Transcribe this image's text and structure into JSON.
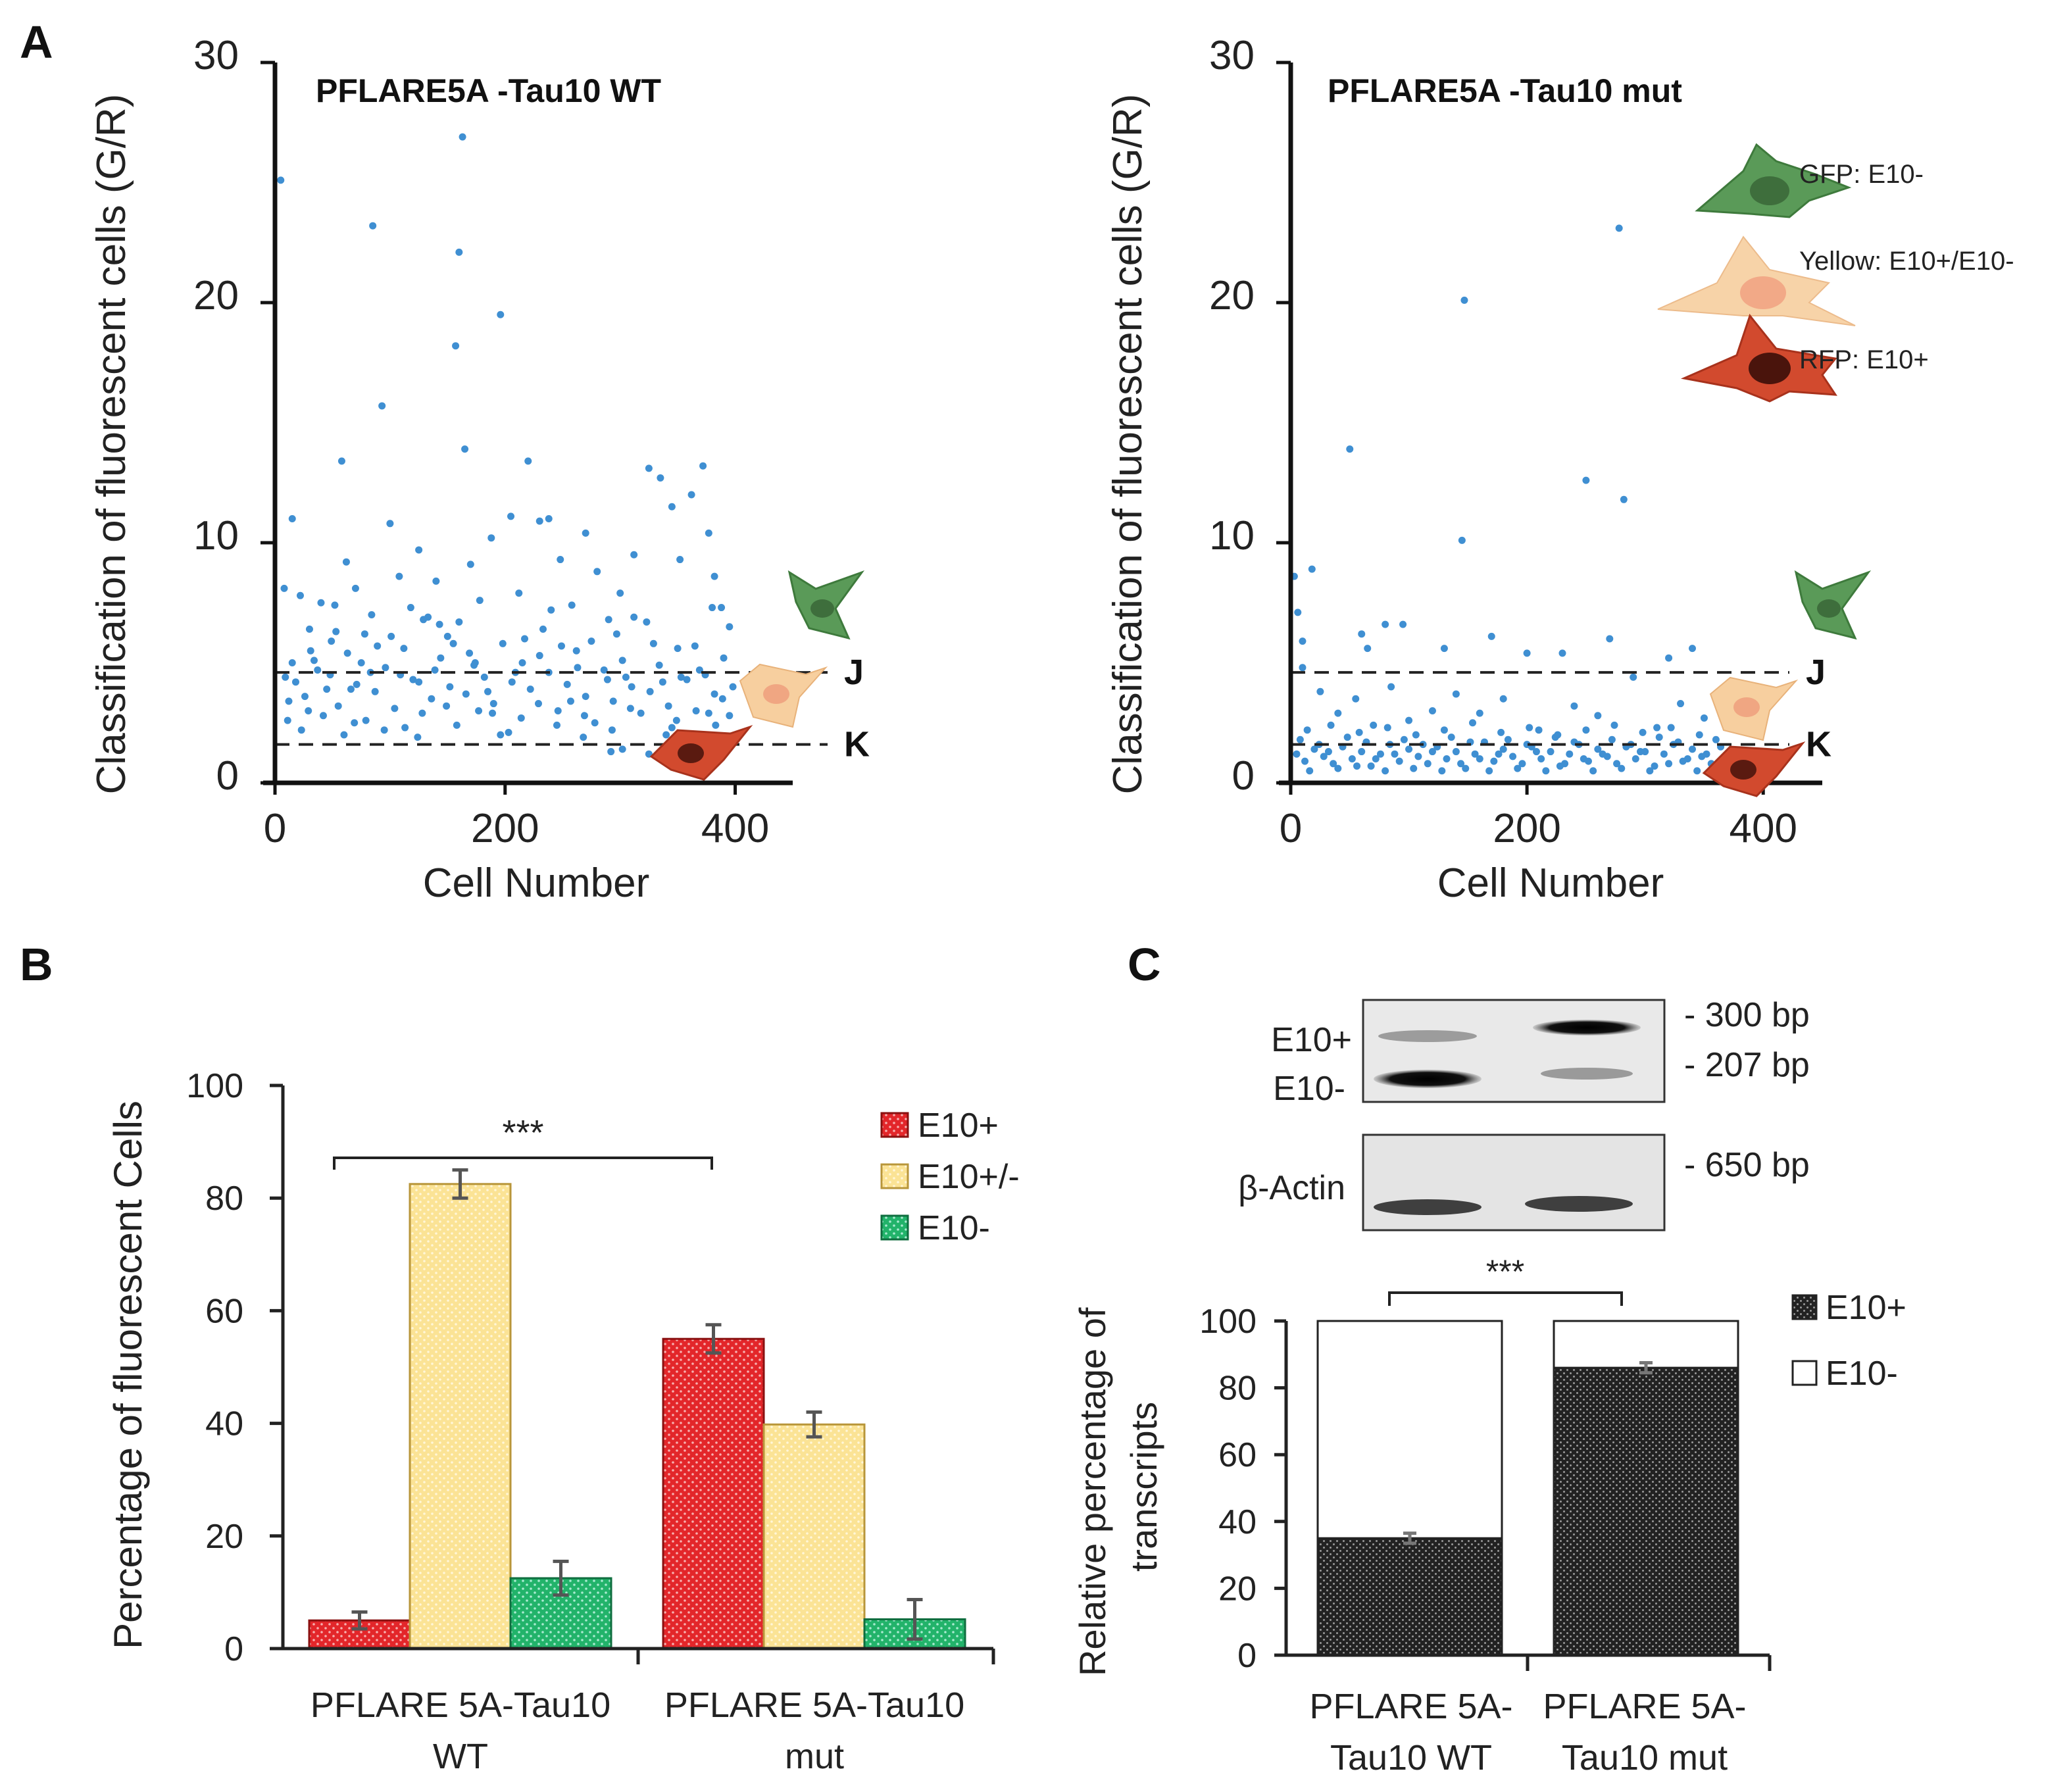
{
  "panel_letters": {
    "a": "A",
    "b": "B",
    "c": "C"
  },
  "colors": {
    "scatter_point": "#3f8fd2",
    "e10_plus_red": "#e3262a",
    "e10_pm_yellow": "#fbe395",
    "e10_minus_green": "#22b36a",
    "stacked_dark": "#222222",
    "gfp_cell": "#5a9a58",
    "yellow_cell": "#f7cf9f",
    "rfp_cell": "#d24a2e"
  },
  "cell_legend": {
    "gfp": "GFP: E10-",
    "yellow": "Yellow: E10+/E10-",
    "rfp": "RFP: E10+"
  },
  "gel": {
    "e10_plus_label": "E10+",
    "e10_minus_label": "E10-",
    "actin_label": "β-Actin",
    "bp_300": "- 300 bp",
    "bp_207": "- 207 bp",
    "bp_650": "- 650 bp"
  },
  "chart_data": [
    {
      "id": "scatter_wt",
      "type": "scatter",
      "title": "PFLARE5A -Tau10 WT",
      "xlabel": "Cell Number",
      "ylabel": "Classification of fluorescent cells (G/R)",
      "xlim": [
        0,
        450
      ],
      "ylim": [
        0,
        30
      ],
      "xticks": [
        "0",
        "200",
        "400"
      ],
      "yticks": [
        "0",
        "10",
        "20",
        "30"
      ],
      "threshold_lines": [
        {
          "label": "J",
          "y": 4.6
        },
        {
          "label": "K",
          "y": 1.6
        }
      ],
      "points": [
        [
          5,
          25.1
        ],
        [
          8,
          8.1
        ],
        [
          15,
          11.0
        ],
        [
          22,
          7.8
        ],
        [
          30,
          6.4
        ],
        [
          40,
          7.5
        ],
        [
          52,
          7.4
        ],
        [
          58,
          13.4
        ],
        [
          62,
          9.2
        ],
        [
          70,
          8.1
        ],
        [
          78,
          6.2
        ],
        [
          85,
          23.2
        ],
        [
          93,
          15.7
        ],
        [
          100,
          10.8
        ],
        [
          108,
          8.6
        ],
        [
          118,
          7.3
        ],
        [
          125,
          9.7
        ],
        [
          133,
          6.9
        ],
        [
          140,
          8.4
        ],
        [
          150,
          6.1
        ],
        [
          157,
          18.2
        ],
        [
          160,
          22.1
        ],
        [
          163,
          26.9
        ],
        [
          165,
          13.9
        ],
        [
          170,
          9.1
        ],
        [
          178,
          7.6
        ],
        [
          188,
          10.2
        ],
        [
          196,
          19.5
        ],
        [
          205,
          11.1
        ],
        [
          212,
          7.9
        ],
        [
          220,
          13.4
        ],
        [
          230,
          10.9
        ],
        [
          238,
          11.0
        ],
        [
          248,
          9.3
        ],
        [
          258,
          7.4
        ],
        [
          270,
          10.4
        ],
        [
          280,
          8.8
        ],
        [
          290,
          6.8
        ],
        [
          300,
          7.9
        ],
        [
          312,
          9.5
        ],
        [
          325,
          13.1
        ],
        [
          335,
          12.7
        ],
        [
          345,
          11.5
        ],
        [
          352,
          9.3
        ],
        [
          362,
          12.0
        ],
        [
          372,
          13.2
        ],
        [
          377,
          10.4
        ],
        [
          382,
          8.6
        ],
        [
          388,
          7.3
        ],
        [
          395,
          6.5
        ],
        [
          292,
          1.3
        ],
        [
          302,
          1.4
        ],
        [
          355,
          1.5
        ],
        [
          360,
          1.6
        ],
        [
          325,
          1.2
        ],
        [
          12,
          3.4
        ],
        [
          18,
          4.2
        ],
        [
          26,
          3.6
        ],
        [
          34,
          5.1
        ],
        [
          42,
          2.8
        ],
        [
          48,
          4.5
        ],
        [
          55,
          3.2
        ],
        [
          63,
          5.4
        ],
        [
          71,
          4.1
        ],
        [
          79,
          2.6
        ],
        [
          87,
          3.8
        ],
        [
          96,
          4.8
        ],
        [
          104,
          3.1
        ],
        [
          112,
          5.6
        ],
        [
          120,
          4.3
        ],
        [
          128,
          2.9
        ],
        [
          136,
          3.5
        ],
        [
          144,
          5.2
        ],
        [
          152,
          4.0
        ],
        [
          158,
          2.4
        ],
        [
          166,
          3.7
        ],
        [
          174,
          5.0
        ],
        [
          182,
          4.4
        ],
        [
          190,
          3.3
        ],
        [
          198,
          5.8
        ],
        [
          206,
          4.2
        ],
        [
          214,
          2.7
        ],
        [
          222,
          3.9
        ],
        [
          230,
          5.3
        ],
        [
          238,
          4.6
        ],
        [
          246,
          3.0
        ],
        [
          254,
          4.1
        ],
        [
          262,
          5.5
        ],
        [
          270,
          3.6
        ],
        [
          278,
          2.5
        ],
        [
          286,
          4.7
        ],
        [
          294,
          3.4
        ],
        [
          302,
          5.1
        ],
        [
          310,
          4.0
        ],
        [
          318,
          2.9
        ],
        [
          326,
          3.8
        ],
        [
          334,
          4.9
        ],
        [
          342,
          3.2
        ],
        [
          350,
          5.6
        ],
        [
          358,
          4.3
        ],
        [
          366,
          3.0
        ],
        [
          374,
          4.5
        ],
        [
          382,
          3.7
        ],
        [
          390,
          5.2
        ],
        [
          398,
          4.0
        ],
        [
          15,
          5.0
        ],
        [
          37,
          4.7
        ],
        [
          66,
          3.9
        ],
        [
          101,
          6.1
        ],
        [
          139,
          4.7
        ],
        [
          177,
          3.0
        ],
        [
          217,
          6.0
        ],
        [
          257,
          3.4
        ],
        [
          297,
          6.2
        ],
        [
          337,
          4.2
        ],
        [
          377,
          2.9
        ],
        [
          23,
          2.2
        ],
        [
          53,
          6.3
        ],
        [
          83,
          4.6
        ],
        [
          113,
          2.3
        ],
        [
          143,
          6.6
        ],
        [
          173,
          4.9
        ],
        [
          203,
          2.1
        ],
        [
          233,
          6.4
        ],
        [
          263,
          4.8
        ],
        [
          293,
          2.2
        ],
        [
          323,
          6.7
        ],
        [
          353,
          4.4
        ],
        [
          383,
          2.4
        ],
        [
          9,
          4.4
        ],
        [
          29,
          3.0
        ],
        [
          49,
          5.9
        ],
        [
          69,
          2.5
        ],
        [
          89,
          5.7
        ],
        [
          109,
          4.5
        ],
        [
          129,
          6.8
        ],
        [
          149,
          3.2
        ],
        [
          169,
          5.4
        ],
        [
          189,
          2.9
        ],
        [
          209,
          4.6
        ],
        [
          229,
          3.3
        ],
        [
          249,
          5.7
        ],
        [
          269,
          2.8
        ],
        [
          289,
          4.3
        ],
        [
          309,
          3.1
        ],
        [
          329,
          5.8
        ],
        [
          349,
          2.6
        ],
        [
          369,
          4.7
        ],
        [
          389,
          3.5
        ],
        [
          11,
          2.6
        ],
        [
          31,
          5.5
        ],
        [
          45,
          3.9
        ],
        [
          75,
          5.0
        ],
        [
          95,
          2.2
        ],
        [
          125,
          4.2
        ],
        [
          155,
          5.8
        ],
        [
          185,
          3.8
        ],
        [
          215,
          5.0
        ],
        [
          245,
          2.4
        ],
        [
          275,
          5.9
        ],
        [
          305,
          4.4
        ],
        [
          345,
          2.3
        ],
        [
          365,
          5.7
        ],
        [
          395,
          2.8
        ],
        [
          60,
          2.0
        ],
        [
          124,
          1.9
        ],
        [
          196,
          2.0
        ],
        [
          268,
          1.9
        ],
        [
          340,
          2.0
        ],
        [
          84,
          7.0
        ],
        [
          160,
          6.7
        ],
        [
          240,
          7.2
        ],
        [
          312,
          6.9
        ],
        [
          380,
          7.3
        ]
      ]
    },
    {
      "id": "scatter_mut",
      "type": "scatter",
      "title": "PFLARE5A -Tau10 mut",
      "xlabel": "Cell Number",
      "ylabel": "Classification of fluorescent cells (G/R)",
      "xlim": [
        0,
        450
      ],
      "ylim": [
        0,
        30
      ],
      "xticks": [
        "0",
        "200",
        "400"
      ],
      "yticks": [
        "0",
        "10",
        "20",
        "30"
      ],
      "threshold_lines": [
        {
          "label": "J",
          "y": 4.6
        },
        {
          "label": "K",
          "y": 1.6
        }
      ],
      "points": [
        [
          3,
          8.6
        ],
        [
          6,
          7.1
        ],
        [
          10,
          5.9
        ],
        [
          18,
          8.9
        ],
        [
          50,
          13.9
        ],
        [
          60,
          6.2
        ],
        [
          65,
          5.6
        ],
        [
          80,
          6.6
        ],
        [
          95,
          6.6
        ],
        [
          130,
          5.6
        ],
        [
          145,
          10.1
        ],
        [
          147,
          20.1
        ],
        [
          170,
          6.1
        ],
        [
          200,
          5.4
        ],
        [
          230,
          5.4
        ],
        [
          250,
          12.6
        ],
        [
          270,
          6.0
        ],
        [
          278,
          23.1
        ],
        [
          282,
          11.8
        ],
        [
          320,
          5.2
        ],
        [
          340,
          5.6
        ],
        [
          10,
          4.8
        ],
        [
          25,
          3.8
        ],
        [
          40,
          2.9
        ],
        [
          55,
          3.5
        ],
        [
          70,
          2.4
        ],
        [
          85,
          4.0
        ],
        [
          100,
          2.6
        ],
        [
          120,
          3.0
        ],
        [
          140,
          3.7
        ],
        [
          160,
          2.9
        ],
        [
          180,
          3.5
        ],
        [
          210,
          2.2
        ],
        [
          240,
          3.2
        ],
        [
          260,
          2.8
        ],
        [
          290,
          4.4
        ],
        [
          310,
          2.3
        ],
        [
          330,
          3.3
        ],
        [
          350,
          2.7
        ],
        [
          5,
          1.2
        ],
        [
          12,
          0.9
        ],
        [
          20,
          1.4
        ],
        [
          28,
          1.1
        ],
        [
          36,
          0.8
        ],
        [
          44,
          1.5
        ],
        [
          52,
          1.0
        ],
        [
          60,
          1.3
        ],
        [
          68,
          0.7
        ],
        [
          76,
          1.2
        ],
        [
          84,
          1.6
        ],
        [
          92,
          0.9
        ],
        [
          100,
          1.4
        ],
        [
          108,
          1.1
        ],
        [
          116,
          0.8
        ],
        [
          124,
          1.5
        ],
        [
          132,
          1.0
        ],
        [
          140,
          1.3
        ],
        [
          148,
          0.6
        ],
        [
          156,
          1.2
        ],
        [
          164,
          1.7
        ],
        [
          172,
          0.9
        ],
        [
          180,
          1.4
        ],
        [
          188,
          1.1
        ],
        [
          196,
          0.8
        ],
        [
          204,
          1.5
        ],
        [
          212,
          1.0
        ],
        [
          220,
          1.3
        ],
        [
          228,
          0.7
        ],
        [
          236,
          1.2
        ],
        [
          244,
          1.6
        ],
        [
          252,
          0.9
        ],
        [
          260,
          1.4
        ],
        [
          268,
          1.1
        ],
        [
          276,
          0.8
        ],
        [
          284,
          1.5
        ],
        [
          292,
          1.0
        ],
        [
          300,
          1.3
        ],
        [
          308,
          0.7
        ],
        [
          316,
          1.2
        ],
        [
          324,
          1.6
        ],
        [
          332,
          0.9
        ],
        [
          340,
          1.4
        ],
        [
          348,
          1.1
        ],
        [
          356,
          0.8
        ],
        [
          364,
          1.5
        ],
        [
          8,
          1.8
        ],
        [
          16,
          0.5
        ],
        [
          24,
          1.6
        ],
        [
          32,
          1.3
        ],
        [
          40,
          0.6
        ],
        [
          48,
          1.9
        ],
        [
          56,
          0.7
        ],
        [
          64,
          1.7
        ],
        [
          72,
          1.0
        ],
        [
          80,
          0.5
        ],
        [
          88,
          1.2
        ],
        [
          96,
          1.8
        ],
        [
          104,
          0.6
        ],
        [
          112,
          1.6
        ],
        [
          120,
          1.3
        ],
        [
          128,
          0.5
        ],
        [
          136,
          1.9
        ],
        [
          144,
          0.8
        ],
        [
          152,
          1.7
        ],
        [
          160,
          1.0
        ],
        [
          168,
          0.5
        ],
        [
          176,
          1.2
        ],
        [
          184,
          1.8
        ],
        [
          192,
          0.6
        ],
        [
          200,
          1.6
        ],
        [
          208,
          1.3
        ],
        [
          216,
          0.5
        ],
        [
          224,
          1.9
        ],
        [
          232,
          0.8
        ],
        [
          240,
          1.7
        ],
        [
          248,
          1.0
        ],
        [
          256,
          0.5
        ],
        [
          264,
          1.2
        ],
        [
          272,
          1.8
        ],
        [
          280,
          0.6
        ],
        [
          288,
          1.6
        ],
        [
          296,
          1.3
        ],
        [
          304,
          0.5
        ],
        [
          312,
          1.9
        ],
        [
          320,
          0.8
        ],
        [
          328,
          1.7
        ],
        [
          336,
          1.0
        ],
        [
          344,
          0.5
        ],
        [
          352,
          1.2
        ],
        [
          360,
          1.8
        ],
        [
          14,
          2.2
        ],
        [
          34,
          2.4
        ],
        [
          58,
          2.1
        ],
        [
          82,
          2.3
        ],
        [
          106,
          2.0
        ],
        [
          130,
          2.2
        ],
        [
          154,
          2.5
        ],
        [
          178,
          2.1
        ],
        [
          202,
          2.3
        ],
        [
          226,
          2.0
        ],
        [
          250,
          2.2
        ],
        [
          274,
          2.4
        ],
        [
          298,
          2.1
        ],
        [
          322,
          2.3
        ],
        [
          346,
          2.0
        ]
      ]
    },
    {
      "id": "bar_b",
      "type": "bar",
      "xlabel": "",
      "ylabel": "Percentage of fluorescent Cells",
      "ylim": [
        0,
        100
      ],
      "yticks": [
        "0",
        "20",
        "40",
        "60",
        "80",
        "100"
      ],
      "categories": [
        [
          "PFLARE 5A-Tau10",
          "WT"
        ],
        [
          "PFLARE 5A-Tau10",
          "mut"
        ]
      ],
      "series": [
        {
          "name": "E10+",
          "values": [
            5,
            55
          ],
          "errors": [
            1.5,
            2.5
          ]
        },
        {
          "name": "E10+/-",
          "values": [
            82.5,
            39.8
          ],
          "errors": [
            2.5,
            2.2
          ]
        },
        {
          "name": "E10-",
          "values": [
            12.5,
            5.2
          ],
          "errors": [
            3.0,
            3.5
          ]
        }
      ],
      "significance": "***"
    },
    {
      "id": "stacked_c",
      "type": "bar",
      "stacked": true,
      "ylabel": [
        "Relative percentage of",
        "transcripts"
      ],
      "ylim": [
        0,
        100
      ],
      "yticks": [
        "0",
        "20",
        "40",
        "60",
        "80",
        "100"
      ],
      "categories": [
        [
          "PFLARE 5A-",
          "Tau10 WT"
        ],
        [
          "PFLARE 5A-",
          "Tau10 mut"
        ]
      ],
      "series": [
        {
          "name": "E10+",
          "values": [
            35,
            86
          ],
          "errors": [
            1.5,
            1.5
          ]
        },
        {
          "name": "E10-",
          "values": [
            65,
            14
          ]
        }
      ],
      "significance": "***"
    }
  ]
}
